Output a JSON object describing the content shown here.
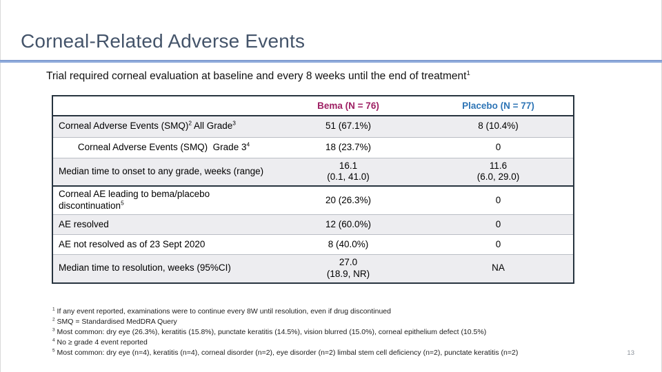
{
  "slide": {
    "title": "Corneal-Related Adverse Events",
    "subtitle": "Trial required corneal evaluation at baseline and every 8 weeks until the end of treatment",
    "subtitle_sup": "1",
    "page_number": "13"
  },
  "colors": {
    "title": "#44546A",
    "title_underline": "#8EAADB",
    "bema_header": "#9E1F63",
    "placebo_header": "#2E75B6",
    "table_border_dark": "#26333E",
    "table_border_thin": "#B9BDC4",
    "row_shaded_bg": "#EDEDF0"
  },
  "table": {
    "headers": {
      "label": "",
      "bema": "Bema (N = 76)",
      "placebo": "Placebo (N = 77)"
    },
    "rows": [
      {
        "label_parts": [
          {
            "t": "Corneal Adverse Events (SMQ)"
          },
          {
            "t": "2",
            "sup": true
          },
          {
            "t": " All Grade"
          },
          {
            "t": "3",
            "sup": true
          }
        ],
        "bema": "51 (67.1%)",
        "placebo": "8 (10.4%)",
        "shaded": true,
        "height": "h31"
      },
      {
        "label_parts": [
          {
            "t": "Corneal Adverse Events (SMQ)  Grade 3"
          },
          {
            "t": "4",
            "sup": true
          }
        ],
        "bema": "18 (23.7%)",
        "placebo": "0",
        "shaded": false,
        "align": "center",
        "height": "h30"
      },
      {
        "label_parts": [
          {
            "t": "Median time to onset to any grade, weeks (range)"
          }
        ],
        "bema": "16.1\n(0.1, 41.0)",
        "placebo": "11.6\n(6.0, 29.0)",
        "shaded": true,
        "height": "h41"
      },
      {
        "label_parts": [
          {
            "t": "Corneal AE leading to bema/placebo\ndiscontinuation"
          },
          {
            "t": "5",
            "sup": true
          }
        ],
        "bema": "20 (26.3%)",
        "placebo": "0",
        "shaded": false,
        "thick_top": true,
        "height": "h41"
      },
      {
        "label_parts": [
          {
            "t": "AE resolved"
          }
        ],
        "bema": "12 (60.0%)",
        "placebo": "0",
        "shaded": true,
        "height": "h29"
      },
      {
        "label_parts": [
          {
            "t": "AE not resolved as of 23 Sept 2020"
          }
        ],
        "bema": "8 (40.0%)",
        "placebo": "0",
        "shaded": false,
        "height": "h29"
      },
      {
        "label_parts": [
          {
            "t": "Median time to resolution, weeks (95%CI)"
          }
        ],
        "bema": "27.0\n(18.9, NR)",
        "placebo": "NA",
        "shaded": true,
        "height": "h40"
      }
    ]
  },
  "footnotes": [
    {
      "sup": "1",
      "text": "If any event reported, examinations were to continue every 8W until resolution, even if drug discontinued"
    },
    {
      "sup": "2",
      "text": "SMQ = Standardised MedDRA Query"
    },
    {
      "sup": "3",
      "text": "Most common: dry eye (26.3%), keratitis (15.8%), punctate keratitis (14.5%), vision blurred (15.0%), corneal epithelium defect (10.5%)"
    },
    {
      "sup": "4",
      "text": "No ≥ grade 4 event reported"
    },
    {
      "sup": "5",
      "text": "Most common: dry eye (n=4), keratitis (n=4), corneal disorder (n=2), eye disorder (n=2) limbal stem cell deficiency (n=2), punctate keratitis (n=2)"
    }
  ]
}
